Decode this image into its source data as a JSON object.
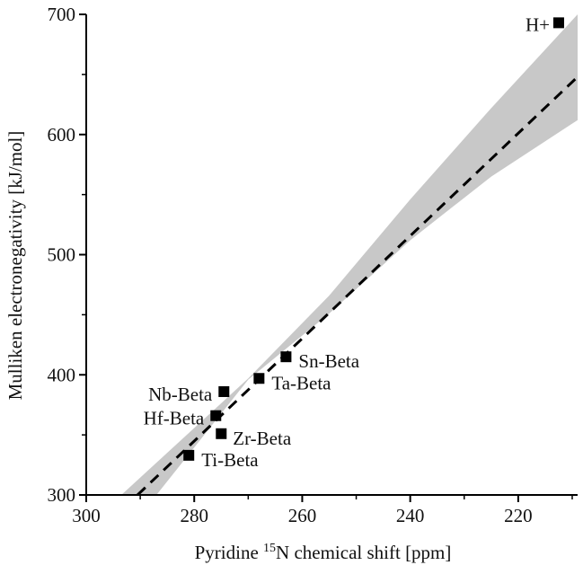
{
  "chart_data": {
    "type": "scatter",
    "title": "",
    "xlabel_prefix": "Pyridine ",
    "xlabel_sup": "15",
    "xlabel_suffix": "N chemical shift [ppm]",
    "ylabel": "Mulliken electronegativity [kJ/mol]",
    "xlim": [
      300,
      209
    ],
    "ylim": [
      300,
      700
    ],
    "x_reversed": true,
    "x_ticks": [
      300,
      280,
      260,
      240,
      220
    ],
    "y_ticks": [
      300,
      400,
      500,
      600,
      700
    ],
    "grid": false,
    "marker": "square",
    "marker_color": "#000000",
    "points": [
      {
        "label": "H+",
        "x": 212.5,
        "y": 693
      },
      {
        "label": "Sn-Beta",
        "x": 263.0,
        "y": 415
      },
      {
        "label": "Ta-Beta",
        "x": 268.0,
        "y": 397
      },
      {
        "label": "Nb-Beta",
        "x": 274.5,
        "y": 386
      },
      {
        "label": "Hf-Beta",
        "x": 276.0,
        "y": 366
      },
      {
        "label": "Zr-Beta",
        "x": 275.0,
        "y": 351
      },
      {
        "label": "Ti-Beta",
        "x": 281.0,
        "y": 333
      }
    ],
    "fit_line": {
      "style": "dashed",
      "color": "#000000",
      "x": [
        290.5,
        209
      ],
      "y": [
        300,
        648
      ]
    },
    "confidence_band": {
      "color": "#c8c8c8",
      "upper": [
        [
          293.5,
          300
        ],
        [
          270,
          397
        ],
        [
          255,
          466
        ],
        [
          240,
          546
        ],
        [
          225,
          622
        ],
        [
          209,
          700
        ]
      ],
      "lower": [
        [
          287,
          300
        ],
        [
          270,
          396
        ],
        [
          255,
          451
        ],
        [
          240,
          512
        ],
        [
          225,
          565
        ],
        [
          209,
          612
        ]
      ]
    }
  }
}
